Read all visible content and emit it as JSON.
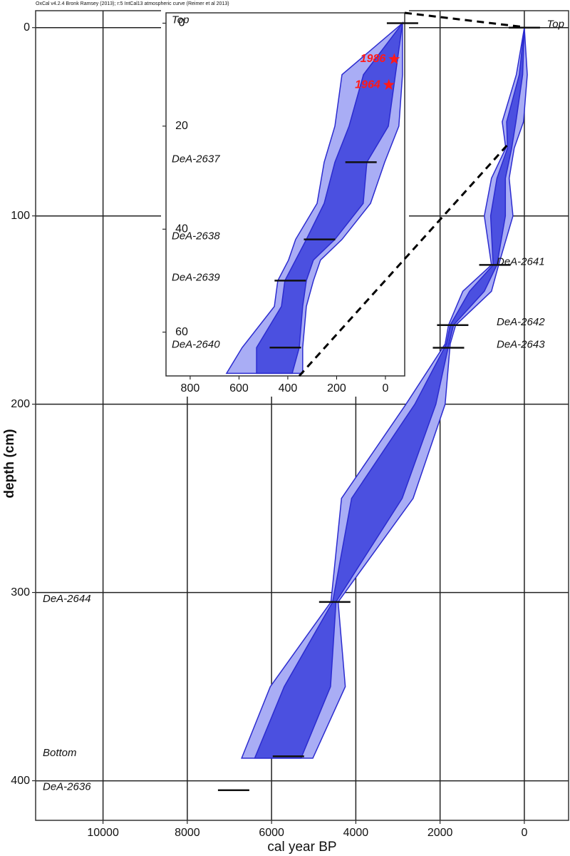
{
  "chart_data": [
    {
      "type": "age-depth",
      "title": "OxCal v4.2.4 Bronk Ramsey (2013); r:5 IntCal13 atmospheric curve (Reimer et al 2013)",
      "xlabel": "cal year BP",
      "ylabel": "depth (cm)",
      "xlim": [
        11600,
        -1050
      ],
      "ylim": [
        -9,
        421
      ],
      "xticks": [
        10000,
        8000,
        6000,
        4000,
        2000,
        0
      ],
      "yticks": [
        0,
        100,
        200,
        300,
        400
      ],
      "grid": true,
      "depth": [
        0,
        25,
        50,
        64,
        80,
        100,
        126,
        140,
        158,
        168,
        200,
        250,
        305,
        350,
        388
      ],
      "bands": [
        {
          "color": "#a9adf5",
          "older": [
            0,
            190,
            525,
            440,
            780,
            950,
            780,
            1460,
            1800,
            1880,
            2810,
            4340,
            4590,
            6030,
            6710
          ],
          "younger": [
            0,
            -70,
            20,
            240,
            360,
            270,
            610,
            780,
            1630,
            1760,
            1880,
            2640,
            4420,
            4250,
            5020
          ]
        },
        {
          "color": "#4b50e0",
          "older": [
            0,
            120,
            420,
            400,
            650,
            800,
            740,
            1300,
            1760,
            1850,
            2600,
            4100,
            4550,
            5700,
            6400
          ],
          "younger": [
            0,
            40,
            200,
            300,
            450,
            450,
            650,
            950,
            1680,
            1790,
            2100,
            2900,
            4470,
            4600,
            5300
          ]
        }
      ],
      "dates": [
        {
          "label": "Top",
          "depth": 0,
          "age": 0
        },
        {
          "label": "DeA-2641",
          "depth": 126,
          "age": 700
        },
        {
          "label": "DeA-2642",
          "depth": 158,
          "age": 1700
        },
        {
          "label": "DeA-2643",
          "depth": 170,
          "age": 1800
        },
        {
          "label": "DeA-2644",
          "depth": 305,
          "age": 4500
        },
        {
          "label": "Bottom",
          "depth": 387,
          "age": 5600
        },
        {
          "label": "DeA-2636",
          "depth": 405,
          "age": 6900
        }
      ]
    },
    {
      "type": "age-depth",
      "xlim": [
        899,
        -79
      ],
      "ylim": [
        -2,
        68.5
      ],
      "xticks": [
        800,
        600,
        400,
        200,
        0
      ],
      "yticks": [
        0,
        20,
        40,
        60
      ],
      "grid": false,
      "depth": [
        0,
        10,
        20,
        27,
        35,
        42,
        46,
        50,
        55,
        63,
        68
      ],
      "bands": [
        {
          "color": "#a9adf5",
          "older": [
            -70,
            178,
            207,
            251,
            280,
            368,
            397,
            441,
            455,
            587,
            651
          ],
          "younger": [
            -70,
            -70,
            -55,
            3,
            61,
            178,
            266,
            295,
            324,
            339,
            339
          ]
        },
        {
          "color": "#4b50e0",
          "older": [
            -70,
            90,
            149,
            207,
            251,
            324,
            368,
            412,
            426,
            528,
            528
          ],
          "younger": [
            -70,
            -41,
            -12,
            76,
            91,
            207,
            295,
            324,
            339,
            353,
            382
          ]
        }
      ],
      "dates": [
        {
          "label": "Top",
          "depth": 0,
          "age": -70
        },
        {
          "label": "DeA-2637",
          "depth": 27,
          "age": 100
        },
        {
          "label": "DeA-2638",
          "depth": 42,
          "age": 270
        },
        {
          "label": "DeA-2639",
          "depth": 50,
          "age": 390
        },
        {
          "label": "DeA-2640",
          "depth": 63,
          "age": 410
        }
      ],
      "markers": [
        {
          "label": "1986",
          "depth": 7,
          "age": -36,
          "color": "#ff1a1a"
        },
        {
          "label": "1964",
          "depth": 12,
          "age": -14,
          "color": "#ff1a1a"
        }
      ]
    }
  ]
}
